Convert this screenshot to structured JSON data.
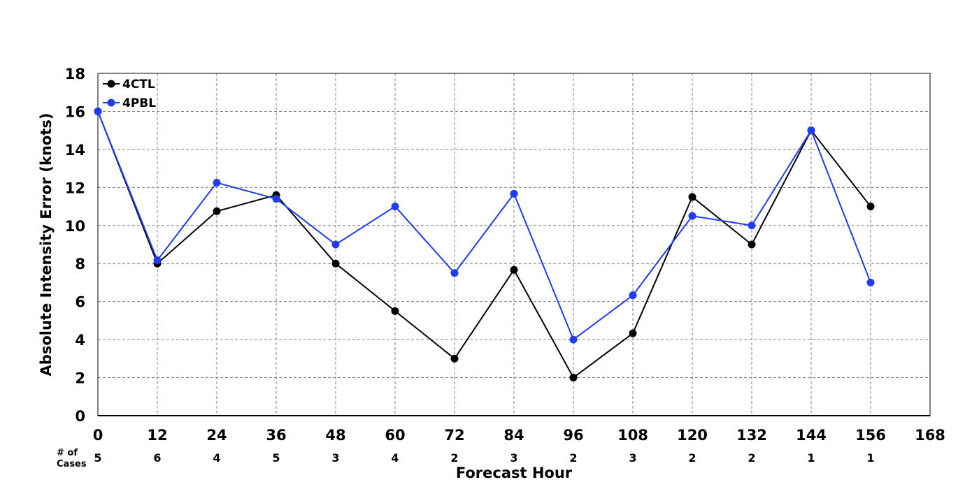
{
  "chart_data": {
    "type": "line",
    "title": "",
    "xlabel": "Forecast Hour",
    "ylabel": "Absolute Intensity Error (knots)",
    "xlim": [
      0,
      168
    ],
    "ylim": [
      0,
      18
    ],
    "x_ticks": [
      0,
      12,
      24,
      36,
      48,
      60,
      72,
      84,
      96,
      108,
      120,
      132,
      144,
      156,
      168
    ],
    "y_ticks": [
      0,
      2,
      4,
      6,
      8,
      10,
      12,
      14,
      16,
      18
    ],
    "grid": true,
    "legend_position": "top-left",
    "cases_label_line1": "# of",
    "cases_label_line2": "Cases",
    "x": [
      0,
      12,
      24,
      36,
      48,
      60,
      72,
      84,
      96,
      108,
      120,
      132,
      144,
      156
    ],
    "cases": [
      5,
      6,
      4,
      5,
      3,
      4,
      2,
      3,
      2,
      3,
      2,
      2,
      1,
      1
    ],
    "series": [
      {
        "name": "4CTL",
        "color": "#000000",
        "values": [
          16,
          8,
          10.75,
          11.6,
          8,
          5.5,
          3,
          7.67,
          2,
          4.33,
          11.5,
          9,
          15,
          11
        ]
      },
      {
        "name": "4PBL",
        "color": "#1f3cf0",
        "values": [
          16,
          8.17,
          12.25,
          11.4,
          9,
          11,
          7.5,
          11.67,
          4,
          6.33,
          10.5,
          10,
          15,
          7
        ]
      }
    ]
  }
}
